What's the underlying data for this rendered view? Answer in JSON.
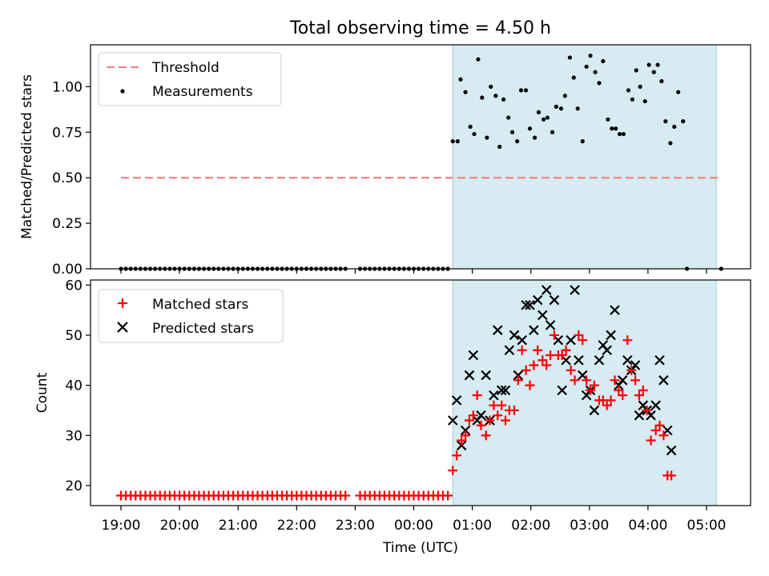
{
  "title": "Total observing time = 4.50 h",
  "colors": {
    "threshold": "#f08080",
    "measurement": "#000000",
    "matched": "#ff0000",
    "predicted": "#000000",
    "span": "#add8e6"
  },
  "chart_data": [
    {
      "type": "scatter",
      "title": "Total observing time = 4.50 h",
      "xlabel": "",
      "ylabel": "Matched/Predicted stars",
      "ylim": [
        0,
        1.23
      ],
      "yticks": [
        "0.00",
        "0.25",
        "0.50",
        "0.75",
        "1.00"
      ],
      "grid": false,
      "legend_position": "upper left",
      "observing_window": {
        "start": "00:40",
        "end": "05:10"
      },
      "threshold": {
        "name": "Threshold",
        "value": 0.5,
        "x_start": "19:00",
        "x_end": "05:15"
      },
      "measurements_name": "Measurements",
      "zero_times": [
        "19:00",
        "19:05",
        "19:10",
        "19:15",
        "19:20",
        "19:25",
        "19:30",
        "19:35",
        "19:40",
        "19:45",
        "19:50",
        "19:55",
        "20:00",
        "20:05",
        "20:10",
        "20:15",
        "20:20",
        "20:25",
        "20:30",
        "20:35",
        "20:40",
        "20:45",
        "20:50",
        "20:55",
        "21:00",
        "21:05",
        "21:10",
        "21:15",
        "21:20",
        "21:25",
        "21:30",
        "21:35",
        "21:40",
        "21:45",
        "21:50",
        "21:55",
        "22:00",
        "22:05",
        "22:10",
        "22:15",
        "22:20",
        "22:25",
        "22:30",
        "22:35",
        "22:40",
        "22:45",
        "22:50",
        "23:05",
        "23:10",
        "23:15",
        "23:20",
        "23:25",
        "23:30",
        "23:35",
        "23:40",
        "23:45",
        "23:50",
        "23:55",
        "00:00",
        "00:05",
        "00:10",
        "00:15",
        "00:20",
        "00:25",
        "00:30",
        "00:35",
        "05:15"
      ],
      "measurements": [
        {
          "x": "00:40",
          "y": 0.7
        },
        {
          "x": "00:45",
          "y": 0.7
        },
        {
          "x": "00:48",
          "y": 1.04
        },
        {
          "x": "00:53",
          "y": 0.97
        },
        {
          "x": "00:58",
          "y": 0.78
        },
        {
          "x": "01:02",
          "y": 0.74
        },
        {
          "x": "01:06",
          "y": 1.15
        },
        {
          "x": "01:10",
          "y": 0.94
        },
        {
          "x": "01:15",
          "y": 0.72
        },
        {
          "x": "01:19",
          "y": 1.0
        },
        {
          "x": "01:24",
          "y": 0.95
        },
        {
          "x": "01:28",
          "y": 0.67
        },
        {
          "x": "01:32",
          "y": 0.93
        },
        {
          "x": "01:37",
          "y": 0.83
        },
        {
          "x": "01:41",
          "y": 0.75
        },
        {
          "x": "01:46",
          "y": 0.7
        },
        {
          "x": "01:50",
          "y": 0.98
        },
        {
          "x": "01:55",
          "y": 0.98
        },
        {
          "x": "01:59",
          "y": 0.77
        },
        {
          "x": "02:04",
          "y": 0.72
        },
        {
          "x": "02:08",
          "y": 0.86
        },
        {
          "x": "02:13",
          "y": 0.82
        },
        {
          "x": "02:17",
          "y": 0.83
        },
        {
          "x": "02:22",
          "y": 0.75
        },
        {
          "x": "02:26",
          "y": 0.89
        },
        {
          "x": "02:31",
          "y": 0.88
        },
        {
          "x": "02:35",
          "y": 0.95
        },
        {
          "x": "02:40",
          "y": 1.16
        },
        {
          "x": "02:44",
          "y": 1.05
        },
        {
          "x": "02:48",
          "y": 0.88
        },
        {
          "x": "02:53",
          "y": 0.7
        },
        {
          "x": "02:57",
          "y": 1.11
        },
        {
          "x": "03:01",
          "y": 1.17
        },
        {
          "x": "03:06",
          "y": 1.08
        },
        {
          "x": "03:10",
          "y": 1.02
        },
        {
          "x": "03:14",
          "y": 1.14
        },
        {
          "x": "03:19",
          "y": 0.82
        },
        {
          "x": "03:23",
          "y": 0.77
        },
        {
          "x": "03:27",
          "y": 0.77
        },
        {
          "x": "03:31",
          "y": 0.74
        },
        {
          "x": "03:35",
          "y": 0.74
        },
        {
          "x": "03:40",
          "y": 0.98
        },
        {
          "x": "03:44",
          "y": 0.93
        },
        {
          "x": "03:48",
          "y": 1.09
        },
        {
          "x": "03:52",
          "y": 1.0
        },
        {
          "x": "03:57",
          "y": 0.92
        },
        {
          "x": "04:01",
          "y": 1.12
        },
        {
          "x": "04:06",
          "y": 1.08
        },
        {
          "x": "04:10",
          "y": 1.12
        },
        {
          "x": "04:14",
          "y": 1.03
        },
        {
          "x": "04:18",
          "y": 0.81
        },
        {
          "x": "04:23",
          "y": 0.69
        },
        {
          "x": "04:27",
          "y": 0.78
        },
        {
          "x": "04:31",
          "y": 0.97
        },
        {
          "x": "04:36",
          "y": 0.81
        },
        {
          "x": "04:40",
          "y": 0.0
        }
      ]
    },
    {
      "type": "scatter",
      "xlabel": "Time (UTC)",
      "ylabel": "Count",
      "ylim": [
        16,
        61
      ],
      "yticks": [
        "20",
        "30",
        "40",
        "50",
        "60"
      ],
      "xticks": [
        "19:00",
        "20:00",
        "21:00",
        "22:00",
        "23:00",
        "00:00",
        "01:00",
        "02:00",
        "03:00",
        "04:00",
        "05:00"
      ],
      "grid": false,
      "legend_position": "upper left",
      "observing_window": {
        "start": "00:40",
        "end": "05:10"
      },
      "series": [
        {
          "name": "Matched stars",
          "marker": "+",
          "baseline_value": 18,
          "baseline_times": [
            "19:00",
            "19:05",
            "19:10",
            "19:15",
            "19:20",
            "19:25",
            "19:30",
            "19:35",
            "19:40",
            "19:45",
            "19:50",
            "19:55",
            "20:00",
            "20:05",
            "20:10",
            "20:15",
            "20:20",
            "20:25",
            "20:30",
            "20:35",
            "20:40",
            "20:45",
            "20:50",
            "20:55",
            "21:00",
            "21:05",
            "21:10",
            "21:15",
            "21:20",
            "21:25",
            "21:30",
            "21:35",
            "21:40",
            "21:45",
            "21:50",
            "21:55",
            "22:00",
            "22:05",
            "22:10",
            "22:15",
            "22:20",
            "22:25",
            "22:30",
            "22:35",
            "22:40",
            "22:45",
            "22:50",
            "23:05",
            "23:10",
            "23:15",
            "23:20",
            "23:25",
            "23:30",
            "23:35",
            "23:40",
            "23:45",
            "23:50",
            "23:55",
            "00:00",
            "00:05",
            "00:10",
            "00:15",
            "00:20",
            "00:25",
            "00:30",
            "00:35"
          ],
          "points": [
            {
              "x": "00:40",
              "y": 23
            },
            {
              "x": "00:44",
              "y": 26
            },
            {
              "x": "00:49",
              "y": 29
            },
            {
              "x": "00:53",
              "y": 30
            },
            {
              "x": "00:57",
              "y": 33
            },
            {
              "x": "01:01",
              "y": 34
            },
            {
              "x": "01:05",
              "y": 38
            },
            {
              "x": "01:09",
              "y": 32
            },
            {
              "x": "01:14",
              "y": 30
            },
            {
              "x": "01:18",
              "y": 33
            },
            {
              "x": "01:22",
              "y": 36
            },
            {
              "x": "01:26",
              "y": 34
            },
            {
              "x": "01:30",
              "y": 36
            },
            {
              "x": "01:34",
              "y": 33
            },
            {
              "x": "01:38",
              "y": 35
            },
            {
              "x": "01:43",
              "y": 35
            },
            {
              "x": "01:47",
              "y": 41
            },
            {
              "x": "01:51",
              "y": 47
            },
            {
              "x": "01:55",
              "y": 43
            },
            {
              "x": "01:59",
              "y": 40
            },
            {
              "x": "02:03",
              "y": 44
            },
            {
              "x": "02:07",
              "y": 47
            },
            {
              "x": "02:12",
              "y": 45
            },
            {
              "x": "02:16",
              "y": 44
            },
            {
              "x": "02:20",
              "y": 46
            },
            {
              "x": "02:24",
              "y": 50
            },
            {
              "x": "02:28",
              "y": 46
            },
            {
              "x": "02:32",
              "y": 46
            },
            {
              "x": "02:36",
              "y": 47
            },
            {
              "x": "02:41",
              "y": 43
            },
            {
              "x": "02:45",
              "y": 41
            },
            {
              "x": "02:49",
              "y": 50
            },
            {
              "x": "02:53",
              "y": 49
            },
            {
              "x": "02:57",
              "y": 41
            },
            {
              "x": "03:01",
              "y": 39
            },
            {
              "x": "03:05",
              "y": 40
            },
            {
              "x": "03:10",
              "y": 37
            },
            {
              "x": "03:14",
              "y": 37
            },
            {
              "x": "03:18",
              "y": 36
            },
            {
              "x": "03:22",
              "y": 37
            },
            {
              "x": "03:26",
              "y": 41
            },
            {
              "x": "03:30",
              "y": 39
            },
            {
              "x": "03:34",
              "y": 38
            },
            {
              "x": "03:39",
              "y": 49
            },
            {
              "x": "03:43",
              "y": 43
            },
            {
              "x": "03:47",
              "y": 41
            },
            {
              "x": "03:51",
              "y": 38
            },
            {
              "x": "03:55",
              "y": 39
            },
            {
              "x": "03:59",
              "y": 35
            },
            {
              "x": "04:03",
              "y": 29
            },
            {
              "x": "04:08",
              "y": 31
            },
            {
              "x": "04:12",
              "y": 32
            },
            {
              "x": "04:16",
              "y": 30
            },
            {
              "x": "04:20",
              "y": 22
            },
            {
              "x": "04:24",
              "y": 22
            }
          ]
        },
        {
          "name": "Predicted stars",
          "marker": "x",
          "points": [
            {
              "x": "00:40",
              "y": 33
            },
            {
              "x": "00:44",
              "y": 37
            },
            {
              "x": "00:49",
              "y": 28
            },
            {
              "x": "00:53",
              "y": 31
            },
            {
              "x": "00:57",
              "y": 42
            },
            {
              "x": "01:01",
              "y": 46
            },
            {
              "x": "01:05",
              "y": 33
            },
            {
              "x": "01:09",
              "y": 34
            },
            {
              "x": "01:14",
              "y": 42
            },
            {
              "x": "01:18",
              "y": 33
            },
            {
              "x": "01:22",
              "y": 38
            },
            {
              "x": "01:26",
              "y": 51
            },
            {
              "x": "01:30",
              "y": 39
            },
            {
              "x": "01:34",
              "y": 39
            },
            {
              "x": "01:38",
              "y": 47
            },
            {
              "x": "01:43",
              "y": 50
            },
            {
              "x": "01:47",
              "y": 42
            },
            {
              "x": "01:51",
              "y": 49
            },
            {
              "x": "01:55",
              "y": 56
            },
            {
              "x": "01:59",
              "y": 56
            },
            {
              "x": "02:03",
              "y": 51
            },
            {
              "x": "02:07",
              "y": 57
            },
            {
              "x": "02:12",
              "y": 54
            },
            {
              "x": "02:16",
              "y": 59
            },
            {
              "x": "02:20",
              "y": 52
            },
            {
              "x": "02:24",
              "y": 57
            },
            {
              "x": "02:28",
              "y": 49
            },
            {
              "x": "02:32",
              "y": 39
            },
            {
              "x": "02:36",
              "y": 45
            },
            {
              "x": "02:41",
              "y": 49
            },
            {
              "x": "02:45",
              "y": 59
            },
            {
              "x": "02:49",
              "y": 45
            },
            {
              "x": "02:53",
              "y": 42
            },
            {
              "x": "02:57",
              "y": 38
            },
            {
              "x": "03:01",
              "y": 39
            },
            {
              "x": "03:05",
              "y": 35
            },
            {
              "x": "03:10",
              "y": 45
            },
            {
              "x": "03:14",
              "y": 48
            },
            {
              "x": "03:18",
              "y": 47
            },
            {
              "x": "03:22",
              "y": 50
            },
            {
              "x": "03:26",
              "y": 55
            },
            {
              "x": "03:30",
              "y": 40
            },
            {
              "x": "03:34",
              "y": 41
            },
            {
              "x": "03:39",
              "y": 45
            },
            {
              "x": "03:43",
              "y": 43
            },
            {
              "x": "03:47",
              "y": 44
            },
            {
              "x": "03:51",
              "y": 34
            },
            {
              "x": "03:55",
              "y": 36
            },
            {
              "x": "03:59",
              "y": 35
            },
            {
              "x": "04:03",
              "y": 34
            },
            {
              "x": "04:08",
              "y": 36
            },
            {
              "x": "04:12",
              "y": 45
            },
            {
              "x": "04:16",
              "y": 41
            },
            {
              "x": "04:20",
              "y": 31
            },
            {
              "x": "04:24",
              "y": 27
            }
          ]
        }
      ]
    }
  ]
}
